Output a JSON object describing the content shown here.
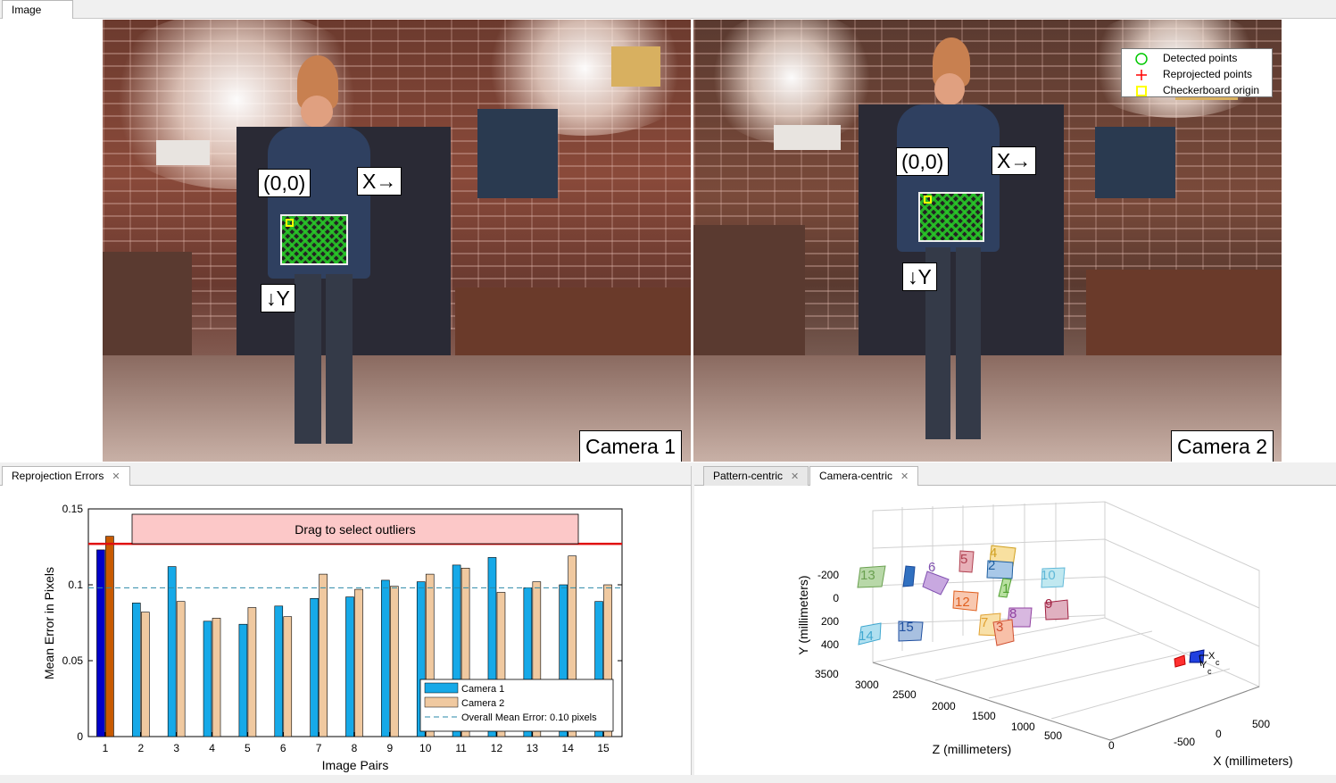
{
  "top_tabs": {
    "image_tab": "Image"
  },
  "legend": {
    "items": [
      {
        "label": "Detected points",
        "color": "#00c800",
        "symbol": "circle"
      },
      {
        "label": "Reprojected points",
        "color": "#ff0000",
        "symbol": "plus"
      },
      {
        "label": "Checkerboard origin",
        "color": "#ffff00",
        "symbol": "square"
      }
    ]
  },
  "camera1": {
    "label": "Camera 1",
    "origin": "(0,0)",
    "x_axis": "X→",
    "y_axis": "↓Y"
  },
  "camera2": {
    "label": "Camera 2",
    "origin": "(0,0)",
    "x_axis": "X→",
    "y_axis": "↓Y"
  },
  "bottom_left": {
    "tab_label": "Reprojection Errors"
  },
  "bottom_right": {
    "tab_pattern": "Pattern-centric",
    "tab_camera": "Camera-centric",
    "active_tab": "Camera-centric"
  },
  "chart_data": [
    {
      "type": "bar",
      "title": "",
      "xlabel": "Image Pairs",
      "ylabel": "Mean Error in Pixels",
      "ylim": [
        0,
        0.15
      ],
      "yticks": [
        "0",
        "0.05",
        "0.1",
        "0.15"
      ],
      "categories": [
        "1",
        "2",
        "3",
        "4",
        "5",
        "6",
        "7",
        "8",
        "9",
        "10",
        "11",
        "12",
        "13",
        "14",
        "15"
      ],
      "series": [
        {
          "name": "Camera 1",
          "color": "#16a9e8",
          "values": [
            0.123,
            0.088,
            0.112,
            0.076,
            0.074,
            0.086,
            0.091,
            0.092,
            0.103,
            0.102,
            0.113,
            0.118,
            0.098,
            0.1,
            0.089
          ]
        },
        {
          "name": "Camera 2",
          "color": "#f0c9a0",
          "values": [
            0.132,
            0.082,
            0.089,
            0.078,
            0.085,
            0.079,
            0.107,
            0.097,
            0.099,
            0.107,
            0.111,
            0.095,
            0.102,
            0.119,
            0.1
          ]
        }
      ],
      "selected_category": "1",
      "selected_colors": {
        "Camera 1": "#0000c8",
        "Camera 2": "#c85a00"
      },
      "threshold_line": 0.127,
      "mean_line": 0.098,
      "mean_label": "Overall Mean Error: 0.10 pixels",
      "annotation": "Drag to select outliers",
      "legend_position": "bottom-right"
    },
    {
      "type": "scatter",
      "title": "",
      "xlabel": "X (millimeters)",
      "ylabel": "Y (millimeters)",
      "zlabel": "Z (millimeters)",
      "xticks": [
        "-500",
        "0",
        "500"
      ],
      "yticks": [
        "-200",
        "0",
        "200",
        "400"
      ],
      "zticks": [
        "3500",
        "3000",
        "2500",
        "2000",
        "1500",
        "1000",
        "500",
        "0"
      ],
      "pattern_labels": [
        "13",
        "12",
        "6",
        "5",
        "4",
        "2",
        "1",
        "10",
        "12",
        "7",
        "8",
        "3",
        "9",
        "14",
        "15"
      ],
      "camera_axis_labels": [
        "X",
        "c",
        "Y",
        "c"
      ]
    }
  ]
}
